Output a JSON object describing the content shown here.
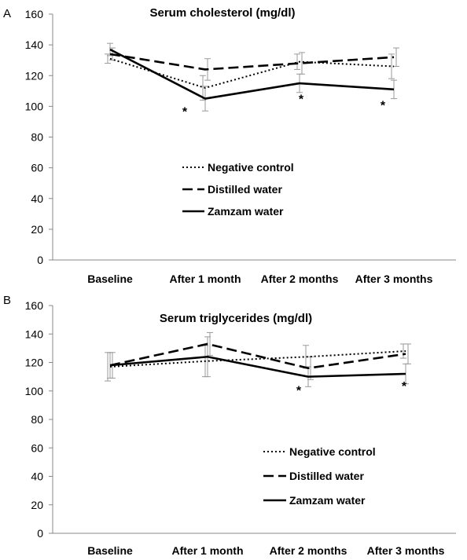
{
  "chart_data": [
    {
      "type": "line",
      "panel_label": "A",
      "title": "Serum cholesterol (mg/dl)",
      "categories": [
        "Baseline",
        "After 1 month",
        "After 2 months",
        "After 3 months"
      ],
      "ylim": [
        0,
        160
      ],
      "yticks": [
        "0",
        "20",
        "40",
        "60",
        "80",
        "100",
        "120",
        "140",
        "160"
      ],
      "grid": false,
      "legend_placement": "center",
      "series": [
        {
          "name": "Negative control",
          "style": "dotted",
          "values": [
            131,
            112,
            129,
            126
          ],
          "errors": [
            3,
            8,
            5,
            8
          ]
        },
        {
          "name": "Distilled water",
          "style": "dashed",
          "values": [
            134,
            124,
            128,
            132
          ],
          "errors": [
            4,
            7,
            7,
            6
          ]
        },
        {
          "name": "Zamzam water",
          "style": "solid",
          "values": [
            137,
            105,
            115,
            111
          ],
          "errors": [
            4,
            8,
            6,
            6
          ]
        }
      ],
      "annotations": [
        {
          "text": "*",
          "category": "After 1 month",
          "y": 100
        },
        {
          "text": "*",
          "category": "After 2 months",
          "y": 108
        },
        {
          "text": "*",
          "category": "After 3 months",
          "y": 104
        }
      ]
    },
    {
      "type": "line",
      "panel_label": "B",
      "title": "Serum triglycerides (mg/dl)",
      "categories": [
        "Baseline",
        "After 1 month",
        "After 2 months",
        "After 3 months"
      ],
      "ylim": [
        0,
        160
      ],
      "yticks": [
        "0",
        "20",
        "40",
        "60",
        "80",
        "100",
        "120",
        "140",
        "160"
      ],
      "grid": false,
      "legend_placement": "right",
      "series": [
        {
          "name": "Negative control",
          "style": "dotted",
          "values": [
            117,
            121,
            124,
            128
          ],
          "errors": [
            10,
            11,
            8,
            5
          ]
        },
        {
          "name": "Distilled water",
          "style": "dashed",
          "values": [
            118,
            133,
            116,
            126
          ],
          "errors": [
            9,
            8,
            8,
            7
          ]
        },
        {
          "name": "Zamzam water",
          "style": "solid",
          "values": [
            118,
            124,
            110,
            112
          ],
          "errors": [
            9,
            14,
            7,
            7
          ]
        }
      ],
      "annotations": [
        {
          "text": "*",
          "category": "After 2 months",
          "y": 104
        },
        {
          "text": "*",
          "category": "After 3 months",
          "y": 107
        }
      ]
    }
  ]
}
